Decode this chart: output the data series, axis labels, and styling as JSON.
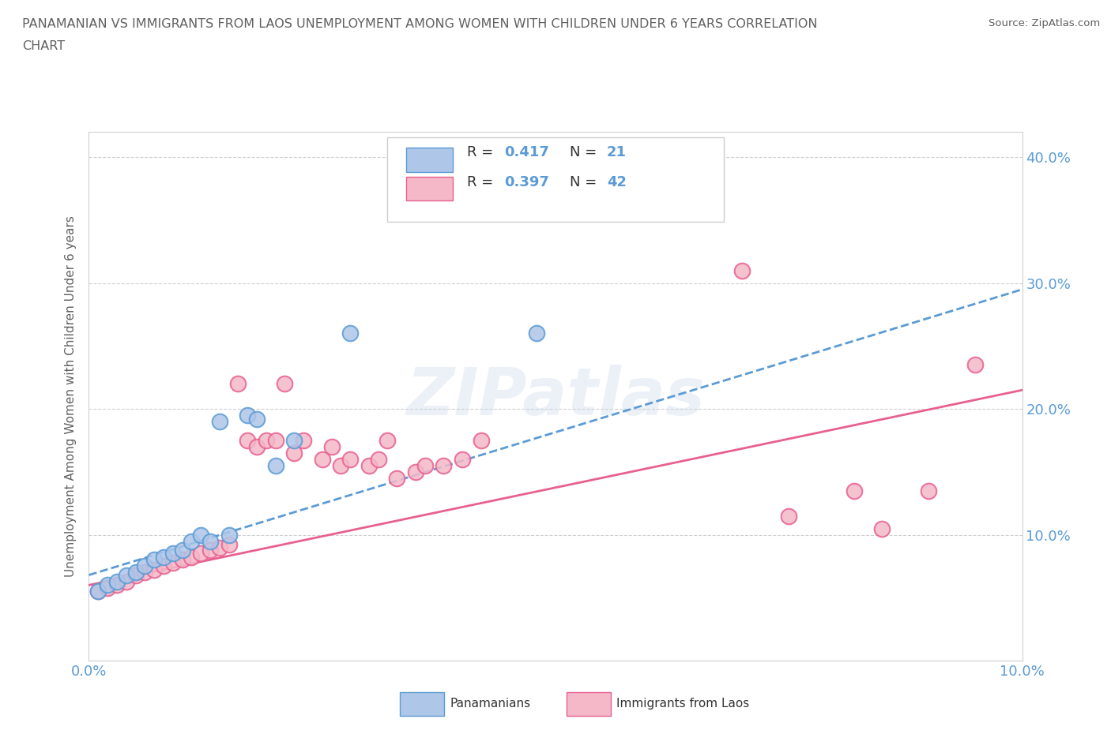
{
  "title_line1": "PANAMANIAN VS IMMIGRANTS FROM LAOS UNEMPLOYMENT AMONG WOMEN WITH CHILDREN UNDER 6 YEARS CORRELATION",
  "title_line2": "CHART",
  "source": "Source: ZipAtlas.com",
  "ylabel": "Unemployment Among Women with Children Under 6 years",
  "xlim": [
    0.0,
    0.1
  ],
  "ylim": [
    0.0,
    0.42
  ],
  "ytick_values": [
    0.0,
    0.1,
    0.2,
    0.3,
    0.4
  ],
  "R_pan": 0.417,
  "N_pan": 21,
  "R_laos": 0.397,
  "N_laos": 42,
  "blue_color": "#aec6e8",
  "pink_color": "#f4b8c8",
  "blue_line_color": "#5b9bd5",
  "pink_line_color": "#e86090",
  "background_color": "#ffffff",
  "grid_color": "#d0d0d0",
  "title_color": "#606060",
  "axis_label_color": "#606060",
  "tick_label_color": "#5b9bd5",
  "pan_scatter_x": [
    0.001,
    0.002,
    0.003,
    0.004,
    0.005,
    0.006,
    0.007,
    0.008,
    0.009,
    0.01,
    0.011,
    0.012,
    0.013,
    0.014,
    0.015,
    0.017,
    0.018,
    0.02,
    0.022,
    0.028,
    0.048
  ],
  "pan_scatter_y": [
    0.055,
    0.06,
    0.063,
    0.068,
    0.07,
    0.075,
    0.08,
    0.082,
    0.085,
    0.088,
    0.095,
    0.1,
    0.095,
    0.19,
    0.1,
    0.195,
    0.192,
    0.155,
    0.175,
    0.26,
    0.26
  ],
  "laos_scatter_x": [
    0.001,
    0.002,
    0.003,
    0.004,
    0.005,
    0.006,
    0.007,
    0.008,
    0.009,
    0.01,
    0.011,
    0.012,
    0.013,
    0.014,
    0.015,
    0.016,
    0.017,
    0.018,
    0.019,
    0.02,
    0.021,
    0.022,
    0.023,
    0.025,
    0.026,
    0.027,
    0.028,
    0.03,
    0.031,
    0.032,
    0.033,
    0.035,
    0.036,
    0.038,
    0.04,
    0.042,
    0.07,
    0.075,
    0.082,
    0.085,
    0.09,
    0.095
  ],
  "laos_scatter_y": [
    0.055,
    0.058,
    0.06,
    0.063,
    0.068,
    0.07,
    0.072,
    0.075,
    0.078,
    0.08,
    0.082,
    0.085,
    0.088,
    0.09,
    0.092,
    0.22,
    0.175,
    0.17,
    0.175,
    0.175,
    0.22,
    0.165,
    0.175,
    0.16,
    0.17,
    0.155,
    0.16,
    0.155,
    0.16,
    0.175,
    0.145,
    0.15,
    0.155,
    0.155,
    0.16,
    0.175,
    0.31,
    0.115,
    0.135,
    0.105,
    0.135,
    0.235
  ],
  "pan_trend": [
    0.068,
    0.295
  ],
  "laos_trend": [
    0.06,
    0.215
  ],
  "trend_x": [
    0.0,
    0.1
  ]
}
